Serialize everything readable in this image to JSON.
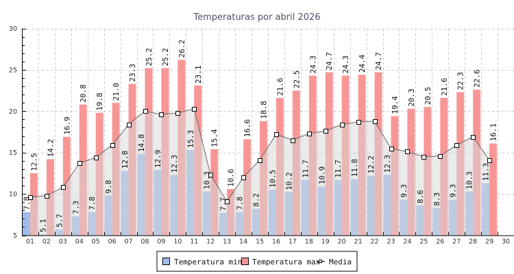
{
  "chart_data": {
    "type": "bar",
    "title": "Temperaturas por abril 2026",
    "xlabel": "",
    "ylabel": "",
    "ylim": [
      5,
      30
    ],
    "yticks": [
      5,
      10,
      15,
      20,
      25,
      30
    ],
    "grid": true,
    "legend_position": "bottom-center",
    "categories": [
      "01",
      "02",
      "03",
      "04",
      "05",
      "06",
      "07",
      "08",
      "09",
      "10",
      "11",
      "12",
      "13",
      "14",
      "15",
      "16",
      "17",
      "18",
      "19",
      "20",
      "21",
      "22",
      "23",
      "24",
      "25",
      "26",
      "27",
      "28",
      "29",
      "30"
    ],
    "series": [
      {
        "name": "Temperatura min",
        "kind": "bar",
        "color": "#a0bcec",
        "values": [
          7.8,
          5.1,
          5.7,
          7.3,
          7.8,
          9.8,
          12.8,
          14.8,
          12.9,
          12.3,
          15.3,
          10.3,
          7.7,
          7.8,
          8.2,
          10.5,
          10.2,
          11.7,
          10.9,
          11.7,
          11.8,
          12.2,
          12.3,
          9.3,
          8.6,
          8.3,
          9.3,
          10.3,
          11.3,
          null
        ],
        "labels": [
          "7.8",
          "5.1",
          "5.7",
          "7.3",
          "7.8",
          "9.8",
          "12.8",
          "14.8",
          "12.9",
          "12.3",
          "15.3",
          "10.3",
          "7.7",
          "7.8",
          "8.2",
          "10.5",
          "10.2",
          "11.7",
          "10.9",
          "11.7",
          "11.8",
          "12.2",
          "12.3",
          "9.3",
          "8.6",
          "8.3",
          "9.3",
          "10.3",
          "11.3",
          null
        ]
      },
      {
        "name": "Temperatura max",
        "kind": "bar",
        "color": "#f89696",
        "values": [
          12.5,
          14.2,
          16.9,
          20.8,
          19.8,
          21.0,
          23.3,
          25.2,
          25.2,
          26.2,
          23.1,
          15.4,
          10.6,
          16.6,
          18.8,
          21.6,
          22.5,
          24.3,
          24.7,
          24.3,
          24.4,
          24.7,
          19.4,
          20.3,
          20.5,
          21.6,
          22.3,
          22.6,
          16.1,
          null
        ],
        "labels": [
          "12.5",
          "14.2",
          "16.9",
          "20.8",
          "19.8",
          "21.0",
          "23.3",
          "25.2",
          "25.2",
          "26.2",
          "23.1",
          "15.4",
          "10.6",
          "16.6",
          "18.8",
          "21.6",
          "22.5",
          "24.3",
          "24.7",
          "24.3",
          "24.4",
          "24.7",
          "19.4",
          "20.3",
          "20.5",
          "21.6",
          "22.3",
          "22.6",
          "16.1",
          null
        ]
      },
      {
        "name": "Media",
        "kind": "area-line",
        "color": "#666666",
        "fill": "#d8d8d8",
        "values": [
          9.6,
          9.8,
          10.8,
          13.7,
          14.4,
          15.9,
          18.4,
          20.0,
          19.6,
          19.8,
          20.3,
          12.3,
          9.1,
          12.0,
          14.1,
          17.2,
          16.5,
          17.3,
          17.6,
          18.4,
          18.7,
          18.8,
          15.5,
          15.1,
          14.5,
          14.6,
          15.9,
          16.9,
          14.1,
          null
        ]
      }
    ]
  }
}
